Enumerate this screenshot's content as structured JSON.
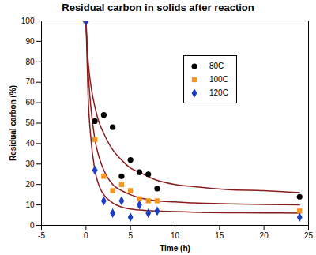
{
  "chart_data": {
    "type": "scatter",
    "title": "Residual carbon in solids after reaction",
    "x_label": "Time (h)",
    "y_label": "Residual carbon (%)",
    "x": [
      0,
      1,
      2,
      3,
      4,
      5,
      6,
      7,
      8,
      24
    ],
    "series": [
      {
        "name": "80C",
        "color": "#000000",
        "marker": "circle",
        "values": [
          100,
          51,
          54,
          48,
          24,
          32,
          26,
          25,
          18,
          14
        ],
        "curve": {
          "type": "line",
          "color": "#8b1c1c",
          "x": [
            0,
            0.25,
            0.5,
            1,
            1.5,
            2,
            3,
            4,
            5,
            6,
            8,
            10,
            12,
            16,
            20,
            24
          ],
          "values": [
            100,
            80,
            70,
            58,
            50,
            45,
            37,
            32,
            28,
            26,
            22,
            20,
            19,
            17.5,
            17,
            16
          ]
        }
      },
      {
        "name": "100C",
        "color": "#f7941d",
        "marker": "square",
        "values": [
          100,
          42,
          24,
          17,
          20,
          17,
          13,
          12,
          12,
          7
        ],
        "curve": {
          "type": "line",
          "color": "#8b1c1c",
          "x": [
            0,
            0.25,
            0.5,
            1,
            1.5,
            2,
            3,
            4,
            5,
            6,
            8,
            10,
            12,
            16,
            20,
            24
          ],
          "values": [
            100,
            75,
            60,
            42,
            33,
            27,
            20,
            17,
            15,
            13.5,
            12,
            11.5,
            11,
            10.5,
            10.2,
            10
          ]
        }
      },
      {
        "name": "120C",
        "color": "#1c3fc8",
        "marker": "diamond",
        "values": [
          100,
          27,
          12,
          6,
          12,
          4,
          10,
          6,
          7,
          4
        ],
        "curve": {
          "type": "line",
          "color": "#8b1c1c",
          "x": [
            0,
            0.25,
            0.5,
            1,
            1.5,
            2,
            3,
            4,
            5,
            6,
            8,
            10,
            12,
            16,
            20,
            24
          ],
          "values": [
            100,
            62,
            45,
            27,
            19,
            15,
            11,
            9,
            8,
            7.5,
            7,
            6.8,
            6.5,
            6.2,
            6.1,
            6
          ]
        }
      }
    ],
    "xlim": [
      -5,
      25
    ],
    "xticks": [
      -5,
      0,
      5,
      10,
      15,
      20,
      25
    ],
    "ylim": [
      0,
      100
    ],
    "yticks": [
      0,
      10,
      20,
      30,
      40,
      50,
      60,
      70,
      80,
      90,
      100
    ],
    "grid": false,
    "legend": "top-right"
  }
}
